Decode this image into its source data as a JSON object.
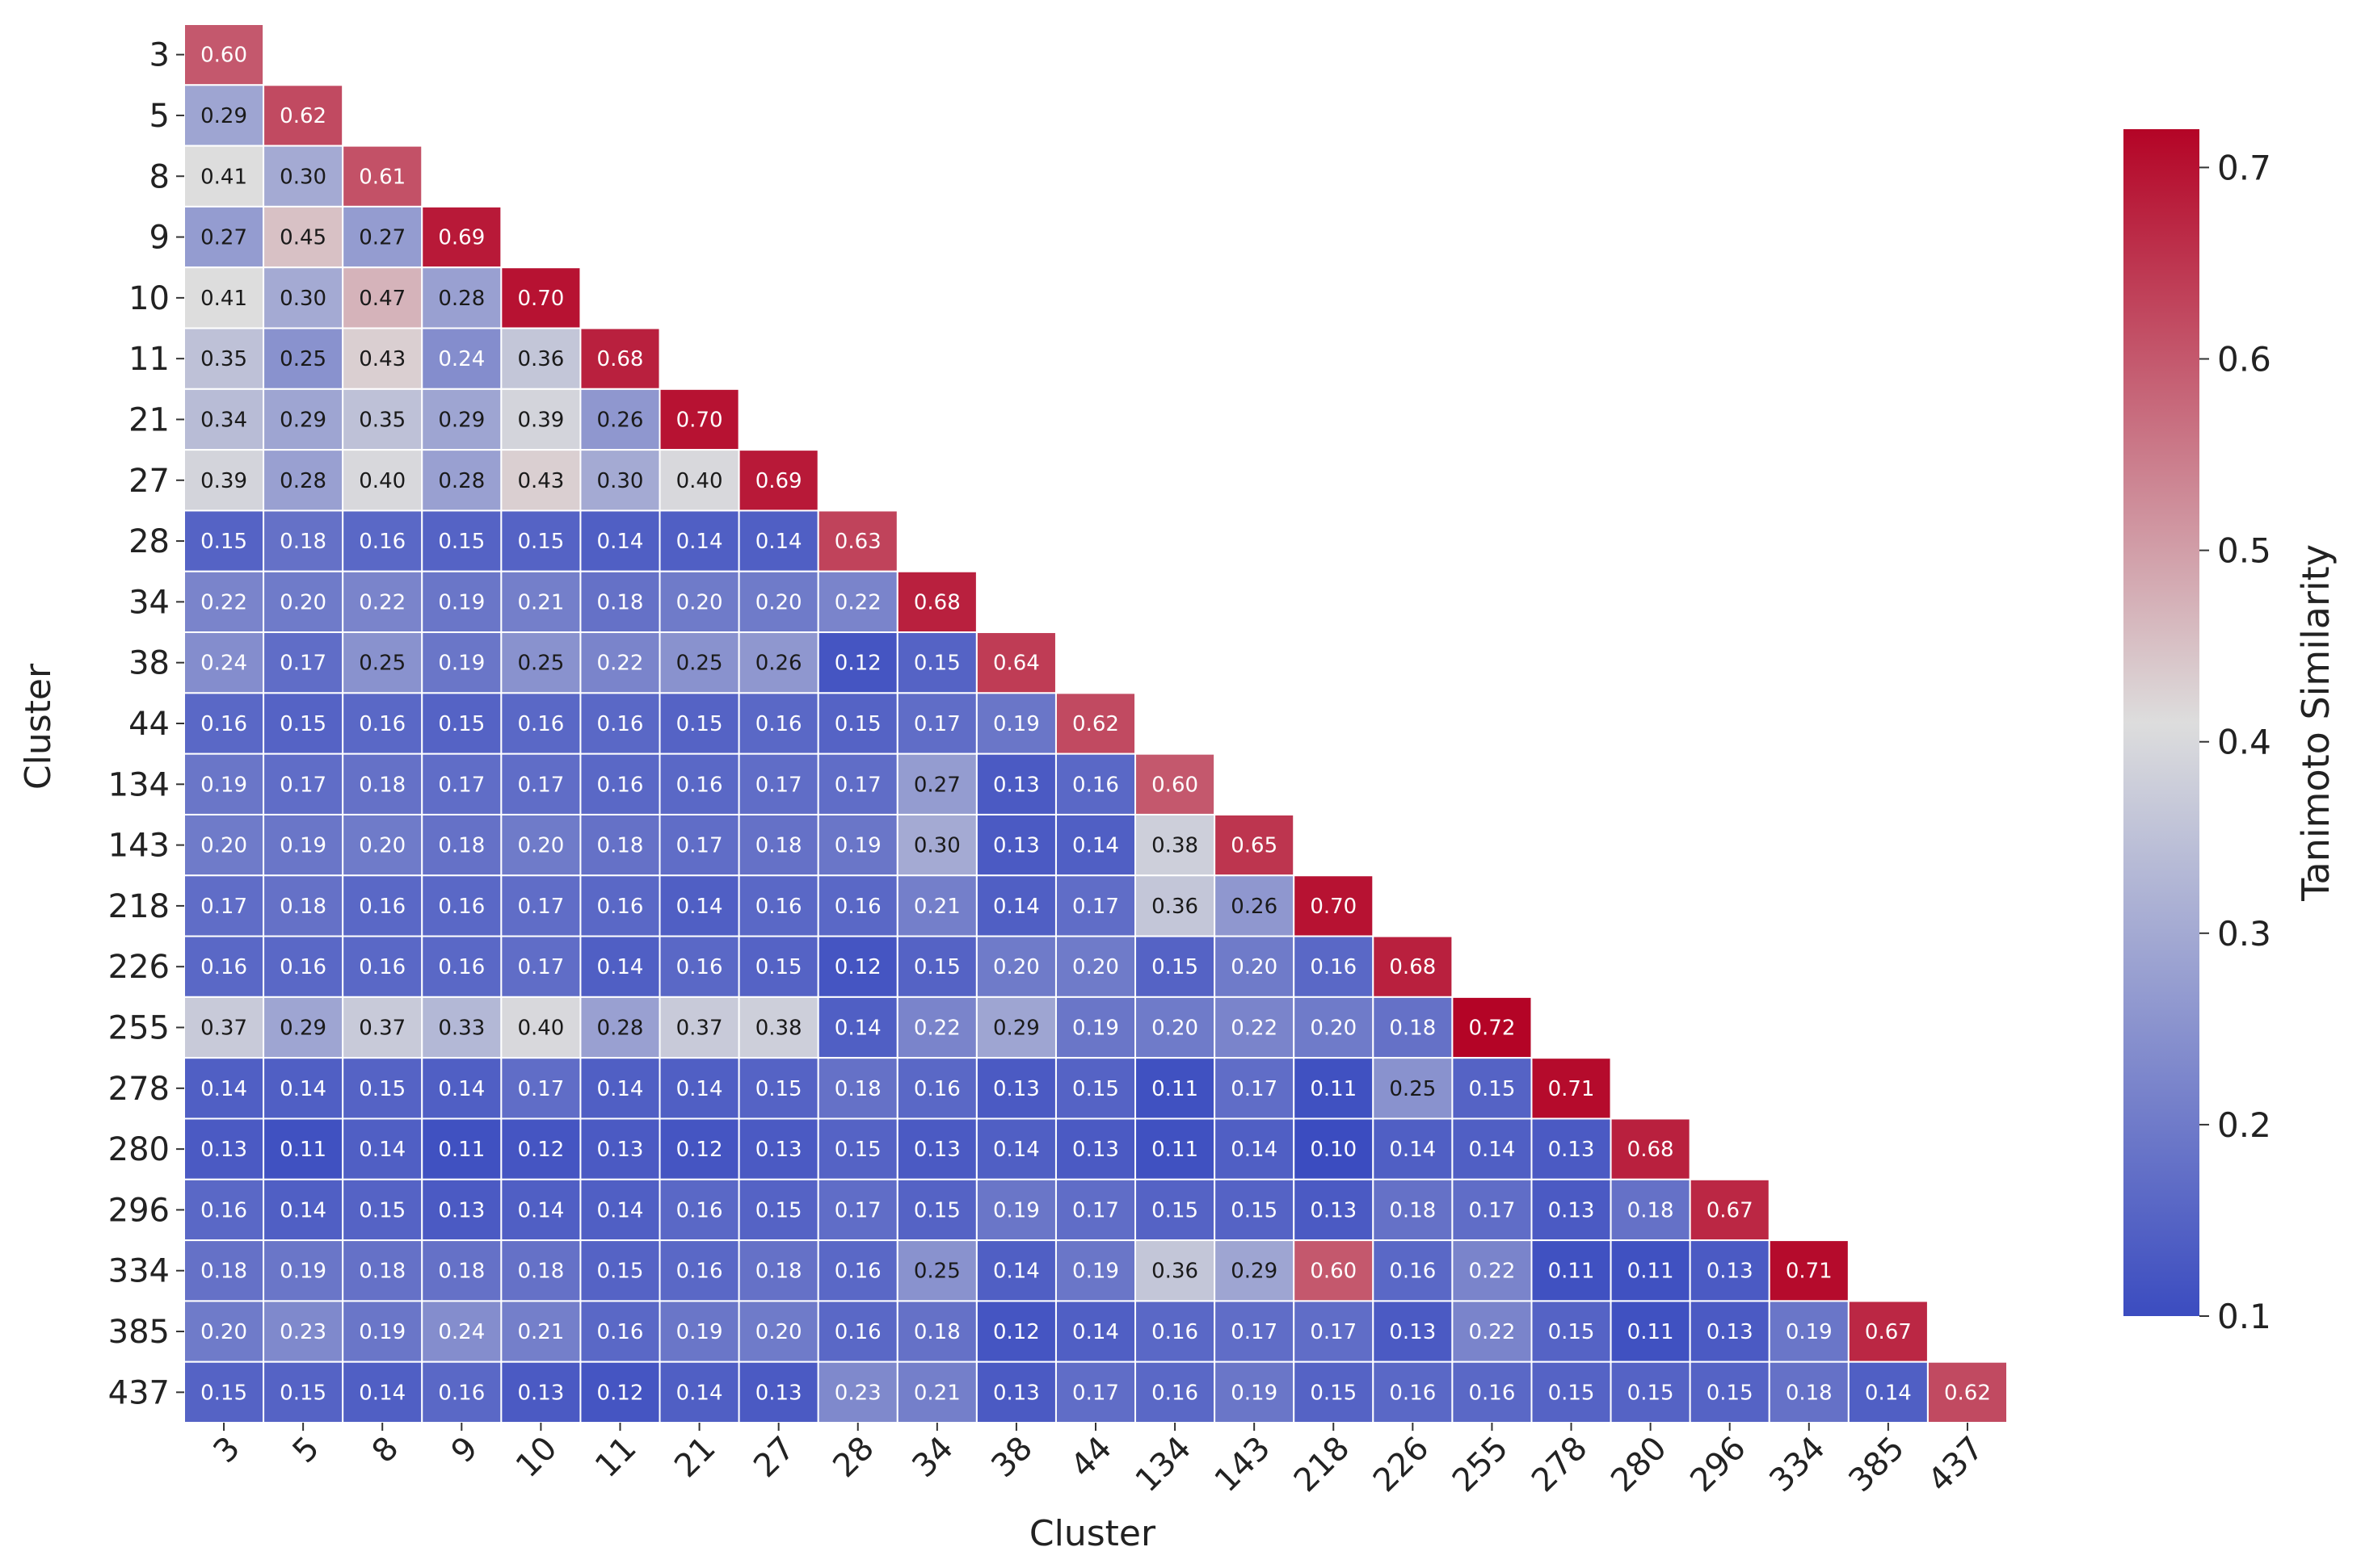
{
  "chart_data": {
    "type": "heatmap",
    "title": "",
    "xlabel": "Cluster",
    "ylabel": "Cluster",
    "categories": [
      "3",
      "5",
      "8",
      "9",
      "10",
      "11",
      "21",
      "27",
      "28",
      "34",
      "38",
      "44",
      "134",
      "143",
      "218",
      "226",
      "255",
      "278",
      "280",
      "296",
      "334",
      "385",
      "437"
    ],
    "matrix": [
      [
        "0.60"
      ],
      [
        "0.29",
        "0.62"
      ],
      [
        "0.41",
        "0.30",
        "0.61"
      ],
      [
        "0.27",
        "0.45",
        "0.27",
        "0.69"
      ],
      [
        "0.41",
        "0.30",
        "0.47",
        "0.28",
        "0.70"
      ],
      [
        "0.35",
        "0.25",
        "0.43",
        "0.24",
        "0.36",
        "0.68"
      ],
      [
        "0.34",
        "0.29",
        "0.35",
        "0.29",
        "0.39",
        "0.26",
        "0.70"
      ],
      [
        "0.39",
        "0.28",
        "0.40",
        "0.28",
        "0.43",
        "0.30",
        "0.40",
        "0.69"
      ],
      [
        "0.15",
        "0.18",
        "0.16",
        "0.15",
        "0.15",
        "0.14",
        "0.14",
        "0.14",
        "0.63"
      ],
      [
        "0.22",
        "0.20",
        "0.22",
        "0.19",
        "0.21",
        "0.18",
        "0.20",
        "0.20",
        "0.22",
        "0.68"
      ],
      [
        "0.24",
        "0.17",
        "0.25",
        "0.19",
        "0.25",
        "0.22",
        "0.25",
        "0.26",
        "0.12",
        "0.15",
        "0.64"
      ],
      [
        "0.16",
        "0.15",
        "0.16",
        "0.15",
        "0.16",
        "0.16",
        "0.15",
        "0.16",
        "0.15",
        "0.17",
        "0.19",
        "0.62"
      ],
      [
        "0.19",
        "0.17",
        "0.18",
        "0.17",
        "0.17",
        "0.16",
        "0.16",
        "0.17",
        "0.17",
        "0.27",
        "0.13",
        "0.16",
        "0.60"
      ],
      [
        "0.20",
        "0.19",
        "0.20",
        "0.18",
        "0.20",
        "0.18",
        "0.17",
        "0.18",
        "0.19",
        "0.30",
        "0.13",
        "0.14",
        "0.38",
        "0.65"
      ],
      [
        "0.17",
        "0.18",
        "0.16",
        "0.16",
        "0.17",
        "0.16",
        "0.14",
        "0.16",
        "0.16",
        "0.21",
        "0.14",
        "0.17",
        "0.36",
        "0.26",
        "0.70"
      ],
      [
        "0.16",
        "0.16",
        "0.16",
        "0.16",
        "0.17",
        "0.14",
        "0.16",
        "0.15",
        "0.12",
        "0.15",
        "0.20",
        "0.20",
        "0.15",
        "0.20",
        "0.16",
        "0.68"
      ],
      [
        "0.37",
        "0.29",
        "0.37",
        "0.33",
        "0.40",
        "0.28",
        "0.37",
        "0.38",
        "0.14",
        "0.22",
        "0.29",
        "0.19",
        "0.20",
        "0.22",
        "0.20",
        "0.18",
        "0.72"
      ],
      [
        "0.14",
        "0.14",
        "0.15",
        "0.14",
        "0.17",
        "0.14",
        "0.14",
        "0.15",
        "0.18",
        "0.16",
        "0.13",
        "0.15",
        "0.11",
        "0.17",
        "0.11",
        "0.25",
        "0.15",
        "0.71"
      ],
      [
        "0.13",
        "0.11",
        "0.14",
        "0.11",
        "0.12",
        "0.13",
        "0.12",
        "0.13",
        "0.15",
        "0.13",
        "0.14",
        "0.13",
        "0.11",
        "0.14",
        "0.10",
        "0.14",
        "0.14",
        "0.13",
        "0.68"
      ],
      [
        "0.16",
        "0.14",
        "0.15",
        "0.13",
        "0.14",
        "0.14",
        "0.16",
        "0.15",
        "0.17",
        "0.15",
        "0.19",
        "0.17",
        "0.15",
        "0.15",
        "0.13",
        "0.18",
        "0.17",
        "0.13",
        "0.18",
        "0.67"
      ],
      [
        "0.18",
        "0.19",
        "0.18",
        "0.18",
        "0.18",
        "0.15",
        "0.16",
        "0.18",
        "0.16",
        "0.25",
        "0.14",
        "0.19",
        "0.36",
        "0.29",
        "0.60",
        "0.16",
        "0.22",
        "0.11",
        "0.11",
        "0.13",
        "0.71"
      ],
      [
        "0.20",
        "0.23",
        "0.19",
        "0.24",
        "0.21",
        "0.16",
        "0.19",
        "0.20",
        "0.16",
        "0.18",
        "0.12",
        "0.14",
        "0.16",
        "0.17",
        "0.17",
        "0.13",
        "0.22",
        "0.15",
        "0.11",
        "0.13",
        "0.19",
        "0.67"
      ],
      [
        "0.15",
        "0.15",
        "0.14",
        "0.16",
        "0.13",
        "0.12",
        "0.14",
        "0.13",
        "0.23",
        "0.21",
        "0.13",
        "0.17",
        "0.16",
        "0.19",
        "0.15",
        "0.16",
        "0.16",
        "0.15",
        "0.15",
        "0.15",
        "0.18",
        "0.14",
        "0.62"
      ]
    ],
    "value_range": [
      0.1,
      0.72
    ],
    "colormap": [
      "#3b4cc0",
      "#dddddd",
      "#b40426"
    ],
    "colorbar": {
      "label": "Tanimoto Similarity",
      "ticks": [
        "0.1",
        "0.2",
        "0.3",
        "0.4",
        "0.5",
        "0.6",
        "0.7"
      ]
    }
  }
}
